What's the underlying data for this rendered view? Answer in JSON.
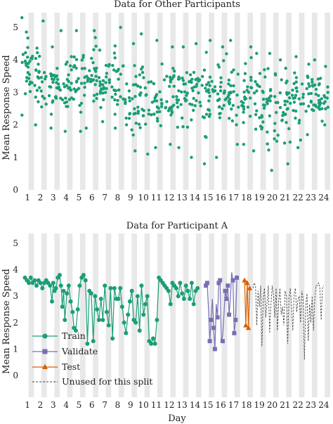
{
  "chart_data": [
    {
      "type": "scatter",
      "title": "Data for Other Participants",
      "ylabel": "Mean Response Speed",
      "xlabel": "",
      "xlim": [
        0.5,
        24.5
      ],
      "ylim": [
        0,
        5.4
      ],
      "yticks": [
        0,
        1,
        2,
        3,
        4,
        5
      ],
      "xticks": [
        1,
        2,
        3,
        4,
        5,
        6,
        7,
        8,
        9,
        10,
        11,
        12,
        13,
        14,
        15,
        16,
        17,
        18,
        19,
        20,
        21,
        22,
        23,
        24
      ],
      "day_bands": "alternating light grey shading marks each day",
      "series": [
        {
          "color": "#1b9e77",
          "points_per_day": 28,
          "day_summary": [
            {
              "day": 1,
              "min": 2.3,
              "max": 5.3,
              "center": 3.6
            },
            {
              "day": 2,
              "min": 2.0,
              "max": 5.2,
              "center": 3.4
            },
            {
              "day": 3,
              "min": 1.9,
              "max": 4.4,
              "center": 3.3
            },
            {
              "day": 4,
              "min": 1.8,
              "max": 4.9,
              "center": 3.2
            },
            {
              "day": 5,
              "min": 1.8,
              "max": 4.9,
              "center": 3.3
            },
            {
              "day": 6,
              "min": 1.9,
              "max": 4.9,
              "center": 3.4
            },
            {
              "day": 7,
              "min": 2.1,
              "max": 4.3,
              "center": 3.2
            },
            {
              "day": 8,
              "min": 1.9,
              "max": 5.0,
              "center": 3.1
            },
            {
              "day": 9,
              "min": 1.2,
              "max": 4.5,
              "center": 2.8
            },
            {
              "day": 10,
              "min": 1.1,
              "max": 4.8,
              "center": 3.0
            },
            {
              "day": 11,
              "min": 1.3,
              "max": 4.6,
              "center": 3.0
            },
            {
              "day": 12,
              "min": 1.4,
              "max": 4.4,
              "center": 3.1
            },
            {
              "day": 13,
              "min": 1.3,
              "max": 4.4,
              "center": 3.0
            },
            {
              "day": 14,
              "min": 1.0,
              "max": 4.5,
              "center": 3.0
            },
            {
              "day": 15,
              "min": 0.8,
              "max": 4.6,
              "center": 2.9
            },
            {
              "day": 16,
              "min": 1.0,
              "max": 4.4,
              "center": 2.9
            },
            {
              "day": 17,
              "min": 1.4,
              "max": 4.6,
              "center": 3.0
            },
            {
              "day": 18,
              "min": 1.4,
              "max": 4.4,
              "center": 2.9
            },
            {
              "day": 19,
              "min": 1.2,
              "max": 4.2,
              "center": 2.7
            },
            {
              "day": 20,
              "min": 0.6,
              "max": 4.2,
              "center": 2.6
            },
            {
              "day": 21,
              "min": 0.8,
              "max": 4.0,
              "center": 2.6
            },
            {
              "day": 22,
              "min": 1.3,
              "max": 4.1,
              "center": 2.8
            },
            {
              "day": 23,
              "min": 1.7,
              "max": 4.0,
              "center": 3.0
            },
            {
              "day": 24,
              "min": 2.0,
              "max": 3.8,
              "center": 2.8
            }
          ]
        }
      ]
    },
    {
      "type": "line",
      "title": "Data for Participant A",
      "ylabel": "Mean Response Speed",
      "xlabel": "Day",
      "xlim": [
        0.5,
        24.5
      ],
      "ylim": [
        -0.5,
        5.4
      ],
      "yticks": [
        0,
        1,
        2,
        3,
        4,
        5
      ],
      "xticks": [
        1,
        2,
        3,
        4,
        5,
        6,
        7,
        8,
        9,
        10,
        11,
        12,
        13,
        14,
        15,
        16,
        17,
        18,
        19,
        20,
        21,
        22,
        23,
        24
      ],
      "legend": {
        "position": "bottom-left",
        "entries": [
          "Train",
          "Validate",
          "Test",
          "Unused for this split"
        ]
      },
      "series": [
        {
          "name": "Train",
          "color": "#1b9e77",
          "marker": "circle",
          "x": [
            0.8,
            0.95,
            1.1,
            1.25,
            1.4,
            1.55,
            1.7,
            1.85,
            2.0,
            2.15,
            2.3,
            2.45,
            2.6,
            2.75,
            2.9,
            3.0,
            3.1,
            3.2,
            3.35,
            3.5,
            3.6,
            3.7,
            3.8,
            3.9,
            4.05,
            4.2,
            4.35,
            4.5,
            4.6,
            4.75,
            4.9,
            5.05,
            5.2,
            5.35,
            5.5,
            5.65,
            5.8,
            5.95,
            6.1,
            6.25,
            6.4,
            6.55,
            6.7,
            6.85,
            7.0,
            7.15,
            7.3,
            7.45,
            7.6,
            7.75,
            7.9,
            8.05,
            8.2,
            8.35,
            8.5,
            8.65,
            8.8,
            8.95,
            9.1,
            9.25,
            9.4,
            9.55,
            9.7,
            9.85,
            10.0,
            10.15,
            10.3,
            10.45,
            10.6,
            10.75,
            10.9,
            11.05,
            11.2,
            11.35,
            11.5,
            11.65,
            11.8,
            11.95,
            12.1,
            12.25,
            12.4,
            12.55,
            12.7,
            12.85,
            13.0,
            13.15,
            13.3,
            13.45,
            13.6,
            13.75,
            13.9,
            14.05,
            14.2
          ],
          "y": [
            3.7,
            3.6,
            3.5,
            3.7,
            3.5,
            3.6,
            3.4,
            3.6,
            3.5,
            3.3,
            3.5,
            3.6,
            3.5,
            3.4,
            2.8,
            3.5,
            3.2,
            3.3,
            3.7,
            3.8,
            3.4,
            2.6,
            3.2,
            2.1,
            3.1,
            3.4,
            2.8,
            2.4,
            1.8,
            1.7,
            2.5,
            3.4,
            3.7,
            3.8,
            3.6,
            1.2,
            3.2,
            3.1,
            1.3,
            3.0,
            2.5,
            2.1,
            2.9,
            2.1,
            3.4,
            2.4,
            1.9,
            3.3,
            1.4,
            3.3,
            2.9,
            2.9,
            3.3,
            2.6,
            2.0,
            1.6,
            2.3,
            2.8,
            3.2,
            2.1,
            2.0,
            3.0,
            1.7,
            3.4,
            2.3,
            2.7,
            3.0,
            1.3,
            1.2,
            1.4,
            1.2,
            2.1,
            3.7,
            3.6,
            3.5,
            3.4,
            3.3,
            3.2,
            2.7,
            3.5,
            3.4,
            3.3,
            3.0,
            3.5,
            3.1,
            2.9,
            3.4,
            3.2,
            2.9,
            3.5,
            2.7,
            3.2,
            3.3
          ]
        },
        {
          "name": "Validate",
          "color": "#7570b3",
          "marker": "square",
          "x": [
            14.85,
            14.95,
            15.05,
            15.15,
            15.25,
            15.35,
            15.45,
            15.55,
            15.65,
            15.75,
            15.85,
            15.95,
            16.05,
            16.15,
            16.25,
            16.35,
            16.45,
            16.55,
            16.65,
            16.75,
            16.85,
            16.95,
            17.05,
            17.15,
            17.25
          ],
          "y": [
            3.4,
            3.5,
            2.5,
            1.3,
            2.1,
            2.9,
            1.8,
            1.0,
            2.7,
            2.2,
            3.5,
            3.6,
            1.3,
            1.5,
            2.3,
            3.2,
            2.9,
            3.4,
            2.3,
            2.9,
            3.9,
            3.6,
            1.6,
            2.1,
            3.7
          ],
          "point_x": [
            14.85,
            14.95,
            15.15,
            15.25,
            15.45,
            15.55,
            15.75,
            15.85,
            15.95,
            16.15,
            16.35,
            16.45,
            16.55,
            16.65,
            16.95,
            17.05,
            17.15,
            17.25
          ],
          "point_y": [
            3.4,
            3.5,
            1.3,
            2.1,
            1.8,
            1.0,
            2.2,
            3.5,
            3.6,
            1.3,
            3.2,
            2.9,
            3.4,
            2.3,
            3.6,
            1.6,
            2.1,
            3.7
          ]
        },
        {
          "name": "Test",
          "color": "#d95f02",
          "marker": "triangle",
          "x": [
            17.85,
            17.95,
            18.05,
            18.15,
            18.25
          ],
          "y": [
            3.6,
            1.9,
            3.5,
            1.8,
            3.3
          ]
        },
        {
          "name": "Unused for this split",
          "color": "#444444",
          "marker": "none",
          "dash": "dashed",
          "x": [
            18.5,
            18.6,
            18.7,
            18.8,
            18.9,
            19.0,
            19.1,
            19.2,
            19.3,
            19.4,
            19.5,
            19.6,
            19.7,
            19.8,
            19.9,
            20.0,
            20.1,
            20.2,
            20.3,
            20.4,
            20.5,
            20.6,
            20.7,
            20.8,
            20.9,
            21.0,
            21.1,
            21.2,
            21.3,
            21.4,
            21.5,
            21.6,
            21.7,
            21.8,
            21.9,
            22.0,
            22.1,
            22.2,
            22.3,
            22.4,
            22.5,
            22.6,
            22.7,
            22.8,
            22.9,
            23.0,
            23.1,
            23.2,
            23.3,
            23.4,
            23.5,
            23.6,
            23.7,
            23.8,
            23.9,
            24.0
          ],
          "y": [
            3.3,
            3.5,
            3.4,
            1.9,
            3.2,
            2.6,
            3.4,
            1.1,
            2.9,
            3.3,
            2.2,
            2.8,
            3.4,
            1.6,
            2.7,
            3.4,
            3.0,
            2.2,
            3.3,
            1.7,
            2.8,
            3.3,
            2.3,
            2.6,
            1.9,
            3.2,
            3.0,
            1.2,
            2.9,
            3.3,
            2.6,
            1.7,
            3.1,
            3.3,
            2.4,
            2.9,
            3.0,
            2.0,
            3.2,
            2.9,
            0.6,
            2.6,
            3.1,
            1.3,
            2.7,
            2.0,
            3.0,
            1.7,
            2.9,
            3.4,
            3.4,
            3.5,
            3.3,
            2.1,
            3.3,
            3.4
          ]
        }
      ]
    }
  ]
}
